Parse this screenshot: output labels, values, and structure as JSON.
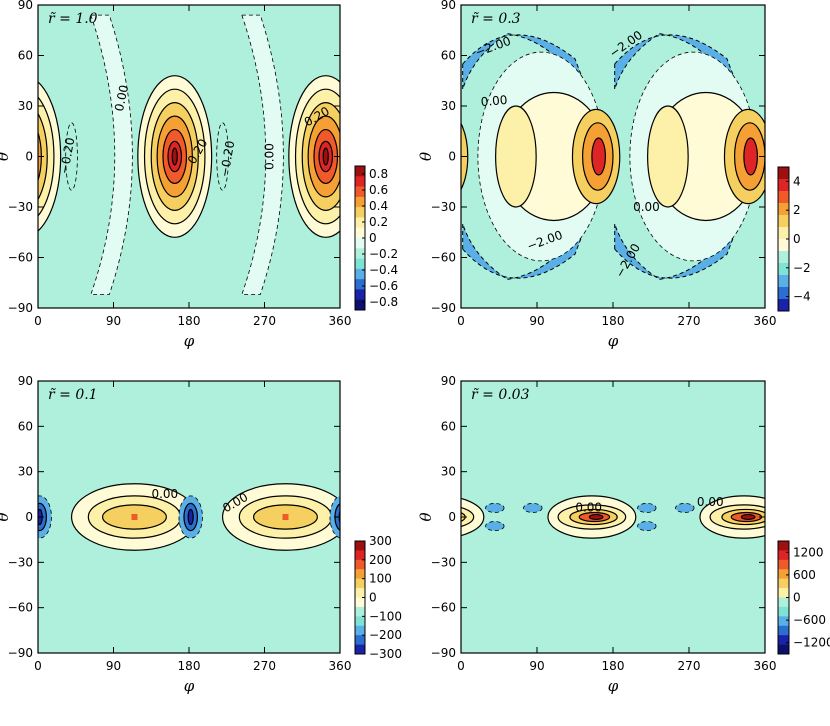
{
  "chart_data": [
    {
      "type": "heatmap",
      "title": "r̃ = 1.0",
      "xlabel": "φ",
      "ylabel": "θ",
      "xlim": [
        0,
        360
      ],
      "ylim": [
        -90,
        90
      ],
      "x_ticks": [
        "0",
        "90",
        "180",
        "270",
        "360"
      ],
      "y_ticks": [
        "90",
        "60",
        "30",
        "0",
        "−30",
        "−60",
        "−90"
      ],
      "colorbar_ticks": [
        "0.8",
        "0.6",
        "0.4",
        "0.2",
        "0",
        "−0.2",
        "−0.4",
        "−0.6",
        "−0.8"
      ],
      "colorbar_range": [
        -0.9,
        0.9
      ],
      "contour_labels": [
        "0.00",
        "−0.20",
        "0.20",
        "−0.20",
        "0.00",
        "0.20"
      ],
      "peaks": [
        {
          "phi": 168,
          "theta": 0,
          "value": 0.85
        },
        {
          "phi": 348,
          "theta": 0,
          "value": 0.85
        }
      ]
    },
    {
      "type": "heatmap",
      "title": "r̃ = 0.3",
      "xlabel": "φ",
      "ylabel": "θ",
      "xlim": [
        0,
        360
      ],
      "ylim": [
        -90,
        90
      ],
      "x_ticks": [
        "0",
        "90",
        "180",
        "270",
        "360"
      ],
      "y_ticks": [
        "90",
        "60",
        "30",
        "0",
        "−30",
        "−60",
        "−90"
      ],
      "colorbar_ticks": [
        "4",
        "2",
        "0",
        "−2",
        "−4"
      ],
      "colorbar_range": [
        -5,
        5
      ],
      "contour_labels": [
        "−2.00",
        "−2.00",
        "0.00",
        "0.00",
        "−2.00",
        "−2.00"
      ],
      "peaks": [
        {
          "phi": 165,
          "theta": 0,
          "value": 4.5
        },
        {
          "phi": 345,
          "theta": 0,
          "value": 4.5
        }
      ]
    },
    {
      "type": "heatmap",
      "title": "r̃ = 0.1",
      "xlabel": "φ",
      "ylabel": "θ",
      "xlim": [
        0,
        360
      ],
      "ylim": [
        -90,
        90
      ],
      "x_ticks": [
        "0",
        "90",
        "180",
        "270",
        "360"
      ],
      "y_ticks": [
        "90",
        "60",
        "30",
        "0",
        "−30",
        "−60",
        "−90"
      ],
      "colorbar_ticks": [
        "300",
        "200",
        "100",
        "0",
        "−100",
        "−200",
        "−300"
      ],
      "colorbar_range": [
        -300,
        300
      ],
      "contour_labels": [
        "0.00",
        "0.00"
      ],
      "peaks": [
        {
          "phi": 115,
          "theta": 0,
          "value": 210
        },
        {
          "phi": 295,
          "theta": 0,
          "value": 210
        }
      ]
    },
    {
      "type": "heatmap",
      "title": "r̃ = 0.03",
      "xlabel": "φ",
      "ylabel": "θ",
      "xlim": [
        0,
        360
      ],
      "ylim": [
        -90,
        90
      ],
      "x_ticks": [
        "0",
        "90",
        "180",
        "270",
        "360"
      ],
      "y_ticks": [
        "90",
        "60",
        "30",
        "0",
        "−30",
        "−60",
        "−90"
      ],
      "colorbar_ticks": [
        "1200",
        "600",
        "0",
        "−600",
        "−1200"
      ],
      "colorbar_range": [
        -1500,
        1500
      ],
      "contour_labels": [
        "0.00",
        "0.00"
      ],
      "peaks": [
        {
          "phi": 160,
          "theta": 0,
          "value": 1400
        },
        {
          "phi": 340,
          "theta": 0,
          "value": 1400
        }
      ]
    }
  ],
  "colors": {
    "background_cyan": "#aef0dc",
    "pale_cyan": "#e2fbf3",
    "pale_yellow": "#fffbd6",
    "light_yellow": "#fdf0a8",
    "yellow": "#f5d060",
    "orange": "#f5a035",
    "red_orange": "#f05a2a",
    "red": "#dd2525",
    "dark_red": "#9c1010",
    "light_blue": "#5ab0e6",
    "blue": "#2a6ed0",
    "dark_blue": "#1a22a8",
    "navy": "#0c0f70",
    "mid_cyan": "#7ee3d5"
  }
}
